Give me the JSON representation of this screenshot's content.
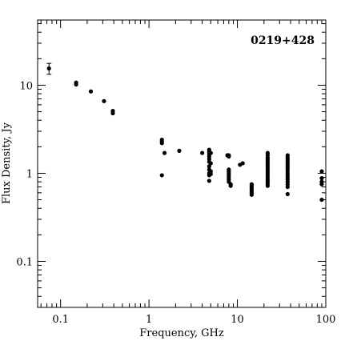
{
  "chart_data": {
    "type": "scatter",
    "title": "0219+428",
    "xlabel": "Frequency, GHz",
    "ylabel": "Flux Density, Jy",
    "x_scale": "log",
    "y_scale": "log",
    "xlim": [
      0.055,
      100
    ],
    "ylim": [
      0.03,
      55
    ],
    "x_ticks": [
      {
        "value": 0.1,
        "label": "0.1"
      },
      {
        "value": 1,
        "label": "1"
      },
      {
        "value": 10,
        "label": "10"
      },
      {
        "value": 100,
        "label": "100"
      }
    ],
    "y_ticks": [
      {
        "value": 0.1,
        "label": "0.1"
      },
      {
        "value": 1,
        "label": "1"
      },
      {
        "value": 10,
        "label": "10"
      }
    ],
    "grid": false,
    "legend": "none",
    "marker_color": "#000000",
    "series": [
      {
        "points": [
          {
            "x": 0.074,
            "y": 15.5,
            "yerr": [
              2.2,
              2.2
            ]
          },
          {
            "x": 0.15,
            "y": 10.7
          },
          {
            "x": 0.15,
            "y": 10.2
          },
          {
            "x": 0.22,
            "y": 8.5
          },
          {
            "x": 0.31,
            "y": 6.6
          },
          {
            "x": 0.39,
            "y": 5.1
          },
          {
            "x": 0.39,
            "y": 4.8
          },
          {
            "x": 1.4,
            "y": 2.4
          },
          {
            "x": 1.4,
            "y": 2.3
          },
          {
            "x": 1.4,
            "y": 2.2
          },
          {
            "x": 1.4,
            "y": 0.95
          },
          {
            "x": 1.5,
            "y": 1.7
          },
          {
            "x": 2.2,
            "y": 1.8
          },
          {
            "x": 4.0,
            "y": 1.7
          },
          {
            "x": 4.8,
            "y": 1.85
          },
          {
            "x": 4.8,
            "y": 1.75
          },
          {
            "x": 4.8,
            "y": 1.65
          },
          {
            "x": 4.8,
            "y": 1.55
          },
          {
            "x": 4.8,
            "y": 1.45
          },
          {
            "x": 4.8,
            "y": 1.35
          },
          {
            "x": 4.8,
            "y": 1.2
          },
          {
            "x": 4.8,
            "y": 1.1
          },
          {
            "x": 4.8,
            "y": 1.0
          },
          {
            "x": 4.8,
            "y": 0.95
          },
          {
            "x": 4.8,
            "y": 0.82
          },
          {
            "x": 5.0,
            "y": 1.7
          },
          {
            "x": 5.0,
            "y": 1.3
          },
          {
            "x": 5.0,
            "y": 1.05
          },
          {
            "x": 5.0,
            "y": 0.98
          },
          {
            "x": 7.7,
            "y": 1.6
          },
          {
            "x": 8.0,
            "y": 1.6
          },
          {
            "x": 8.0,
            "y": 1.55
          },
          {
            "x": 8.0,
            "y": 1.1
          },
          {
            "x": 8.0,
            "y": 1.05
          },
          {
            "x": 8.0,
            "y": 1.0
          },
          {
            "x": 8.0,
            "y": 0.95
          },
          {
            "x": 8.0,
            "y": 0.9
          },
          {
            "x": 8.0,
            "y": 0.85
          },
          {
            "x": 8.0,
            "y": 0.8
          },
          {
            "x": 8.4,
            "y": 0.75
          },
          {
            "x": 8.4,
            "y": 0.72
          },
          {
            "x": 10.7,
            "y": 1.25
          },
          {
            "x": 11.5,
            "y": 1.3
          },
          {
            "x": 14.5,
            "y": 0.75
          },
          {
            "x": 14.5,
            "y": 0.72
          },
          {
            "x": 14.5,
            "y": 0.69
          },
          {
            "x": 14.5,
            "y": 0.66
          },
          {
            "x": 14.5,
            "y": 0.63
          },
          {
            "x": 14.5,
            "y": 0.6
          },
          {
            "x": 14.5,
            "y": 0.57
          },
          {
            "x": 22,
            "y": 1.7
          },
          {
            "x": 22,
            "y": 1.6
          },
          {
            "x": 22,
            "y": 1.5
          },
          {
            "x": 22,
            "y": 1.42
          },
          {
            "x": 22,
            "y": 1.35
          },
          {
            "x": 22,
            "y": 1.28
          },
          {
            "x": 22,
            "y": 1.21
          },
          {
            "x": 22,
            "y": 1.15
          },
          {
            "x": 22,
            "y": 1.09
          },
          {
            "x": 22,
            "y": 1.03
          },
          {
            "x": 22,
            "y": 0.98
          },
          {
            "x": 22,
            "y": 0.93
          },
          {
            "x": 22,
            "y": 0.88
          },
          {
            "x": 22,
            "y": 0.84
          },
          {
            "x": 22,
            "y": 0.8
          },
          {
            "x": 22,
            "y": 0.76
          },
          {
            "x": 22,
            "y": 0.72
          },
          {
            "x": 37,
            "y": 1.6
          },
          {
            "x": 37,
            "y": 1.52
          },
          {
            "x": 37,
            "y": 1.45
          },
          {
            "x": 37,
            "y": 1.38
          },
          {
            "x": 37,
            "y": 1.31
          },
          {
            "x": 37,
            "y": 1.24
          },
          {
            "x": 37,
            "y": 1.18
          },
          {
            "x": 37,
            "y": 1.12
          },
          {
            "x": 37,
            "y": 1.06
          },
          {
            "x": 37,
            "y": 1.0
          },
          {
            "x": 37,
            "y": 0.95
          },
          {
            "x": 37,
            "y": 0.9
          },
          {
            "x": 37,
            "y": 0.85
          },
          {
            "x": 37,
            "y": 0.8
          },
          {
            "x": 37,
            "y": 0.75
          },
          {
            "x": 37,
            "y": 0.7
          },
          {
            "x": 37,
            "y": 0.58
          },
          {
            "x": 90,
            "y": 1.05
          },
          {
            "x": 90,
            "y": 0.88
          },
          {
            "x": 90,
            "y": 0.8
          },
          {
            "x": 90,
            "y": 0.75
          },
          {
            "x": 90,
            "y": 0.5
          }
        ]
      }
    ]
  }
}
